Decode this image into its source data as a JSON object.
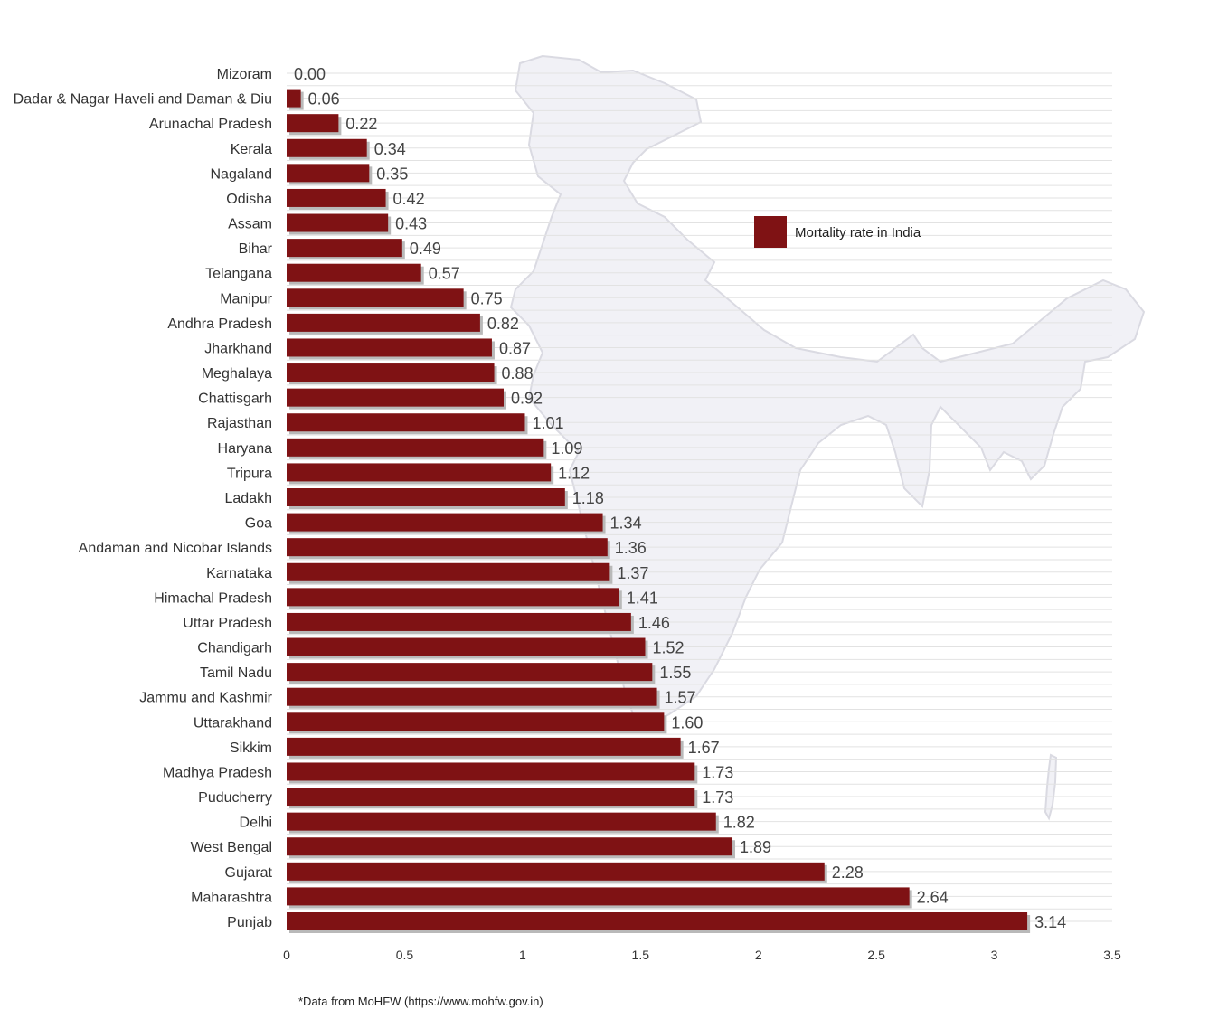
{
  "chart_data": {
    "type": "bar",
    "orientation": "horizontal",
    "categories": [
      "Mizoram",
      "Dadar & Nagar Haveli and Daman & Diu",
      "Arunachal Pradesh",
      "Kerala",
      "Nagaland",
      "Odisha",
      "Assam",
      "Bihar",
      "Telangana",
      "Manipur",
      "Andhra Pradesh",
      "Jharkhand",
      "Meghalaya",
      "Chattisgarh",
      "Rajasthan",
      "Haryana",
      "Tripura",
      "Ladakh",
      "Goa",
      "Andaman and Nicobar Islands",
      "Karnataka",
      "Himachal Pradesh",
      "Uttar Pradesh",
      "Chandigarh",
      "Tamil Nadu",
      "Jammu and Kashmir",
      "Uttarakhand",
      "Sikkim",
      "Madhya Pradesh",
      "Puducherry",
      "Delhi",
      "West Bengal",
      "Gujarat",
      "Maharashtra",
      "Punjab"
    ],
    "series": [
      {
        "name": "Mortality rate in India",
        "values": [
          0.0,
          0.06,
          0.22,
          0.34,
          0.35,
          0.42,
          0.43,
          0.49,
          0.57,
          0.75,
          0.82,
          0.87,
          0.88,
          0.92,
          1.01,
          1.09,
          1.12,
          1.18,
          1.34,
          1.36,
          1.37,
          1.41,
          1.46,
          1.52,
          1.55,
          1.57,
          1.6,
          1.67,
          1.73,
          1.73,
          1.82,
          1.89,
          2.28,
          2.64,
          3.14
        ],
        "labels": [
          "0.00",
          "0.06",
          "0.22",
          "0.34",
          "0.35",
          "0.42",
          "0.43",
          "0.49",
          "0.57",
          "0.75",
          "0.82",
          "0.87",
          "0.88",
          "0.92",
          "1.01",
          "1.09",
          "1.12",
          "1.18",
          "1.34",
          "1.36",
          "1.37",
          "1.41",
          "1.46",
          "1.52",
          "1.55",
          "1.57",
          "1.60",
          "1.67",
          "1.73",
          "1.73",
          "1.82",
          "1.89",
          "2.28",
          "2.64",
          "3.14"
        ],
        "color": "#7f1214"
      }
    ],
    "x_ticks": [
      "0",
      "0.5",
      "1",
      "1.5",
      "2",
      "2.5",
      "3",
      "3.5"
    ],
    "xlim": [
      0,
      3.5
    ],
    "title": "",
    "xlabel": "",
    "ylabel": "",
    "grid": "horizontal lines",
    "legend": "top-right",
    "background_image": "india-map-outline"
  },
  "colors": {
    "bar": "#7f1214",
    "bar_shadow": "#b9b9b9",
    "grid": "#e2e2e2",
    "map_fill": "#f1f1f6",
    "map_stroke": "#dadae2"
  },
  "footnote": "*Data from MoHFW (https://www.mohfw.gov.in)"
}
